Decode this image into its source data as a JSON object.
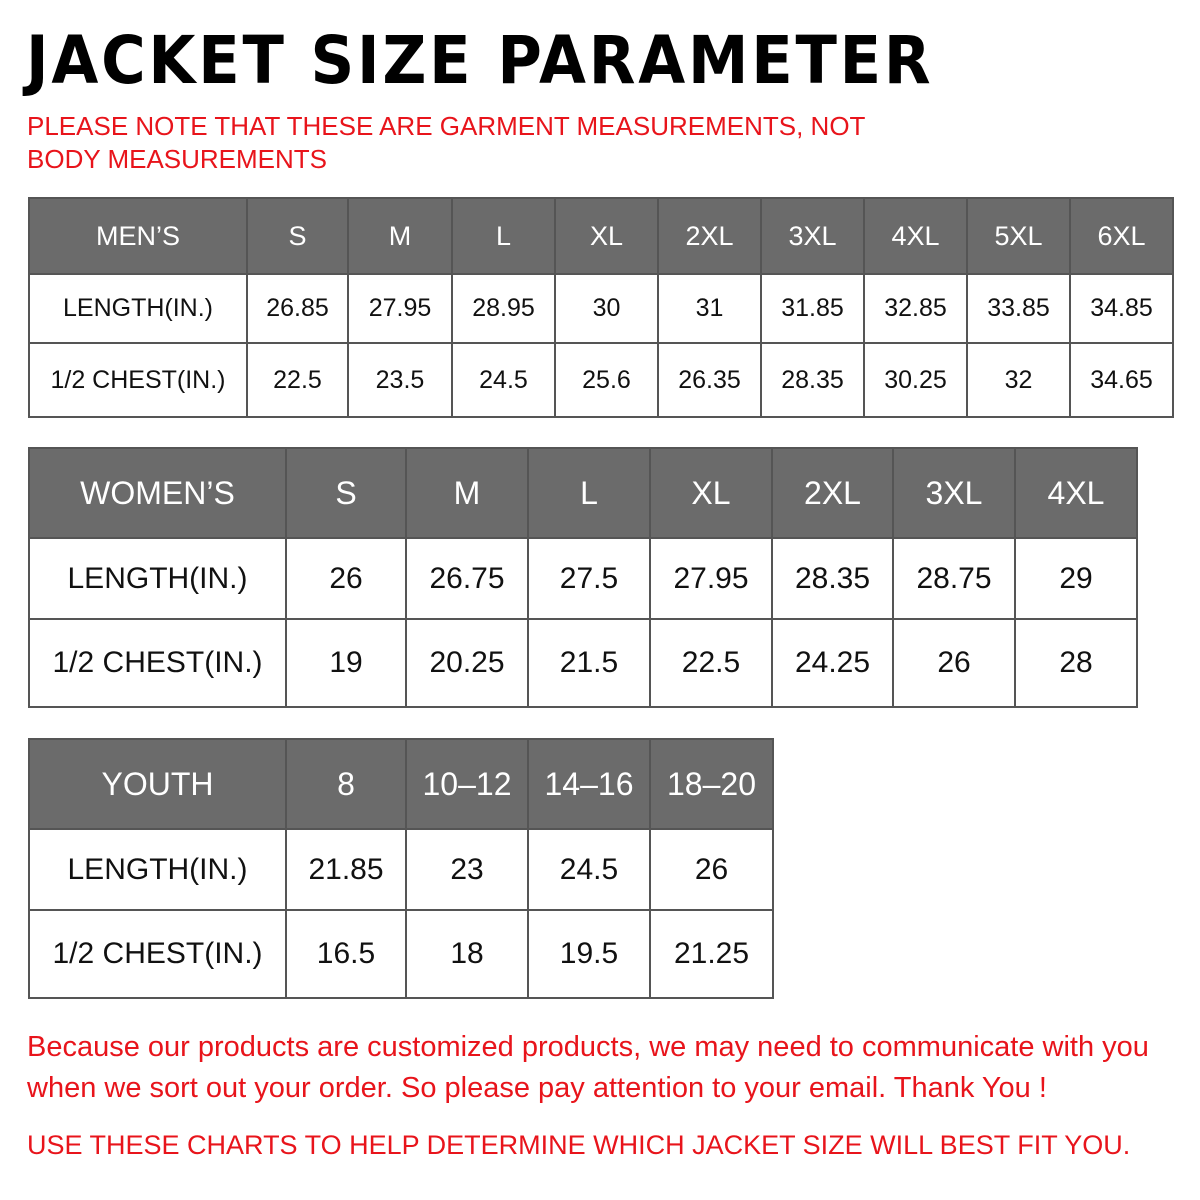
{
  "title": "JACKET SIZE PARAMETER",
  "note": "PLEASE NOTE THAT THESE ARE GARMENT MEASUREMENTS, NOT BODY MEASUREMENTS",
  "colors": {
    "header_bg": "#6b6b6b",
    "accent_red": "#e8141b"
  },
  "tables": {
    "men": {
      "header": [
        "MEN’S",
        "S",
        "M",
        "L",
        "XL",
        "2XL",
        "3XL",
        "4XL",
        "5XL",
        "6XL"
      ],
      "rows": [
        [
          "LENGTH(IN.)",
          "26.85",
          "27.95",
          "28.95",
          "30",
          "31",
          "31.85",
          "32.85",
          "33.85",
          "34.85"
        ],
        [
          "1/2 CHEST(IN.)",
          "22.5",
          "23.5",
          "24.5",
          "25.6",
          "26.35",
          "28.35",
          "30.25",
          "32",
          "34.65"
        ]
      ]
    },
    "women": {
      "header": [
        "WOMEN’S",
        "S",
        "M",
        "L",
        "XL",
        "2XL",
        "3XL",
        "4XL"
      ],
      "rows": [
        [
          "LENGTH(IN.)",
          "26",
          "26.75",
          "27.5",
          "27.95",
          "28.35",
          "28.75",
          "29"
        ],
        [
          "1/2 CHEST(IN.)",
          "19",
          "20.25",
          "21.5",
          "22.5",
          "24.25",
          "26",
          "28"
        ]
      ]
    },
    "youth": {
      "header": [
        "YOUTH",
        "8",
        "10–12",
        "14–16",
        "18–20"
      ],
      "rows": [
        [
          "LENGTH(IN.)",
          "21.85",
          "23",
          "24.5",
          "26"
        ],
        [
          "1/2 CHEST(IN.)",
          "16.5",
          "18",
          "19.5",
          "21.25"
        ]
      ]
    }
  },
  "footer": "Because our products are customized products, we may need to communicate with you when we sort out your order. So please pay attention to your email. Thank You !",
  "footer2": "USE THESE CHARTS TO HELP DETERMINE WHICH JACKET SIZE WILL BEST FIT YOU."
}
